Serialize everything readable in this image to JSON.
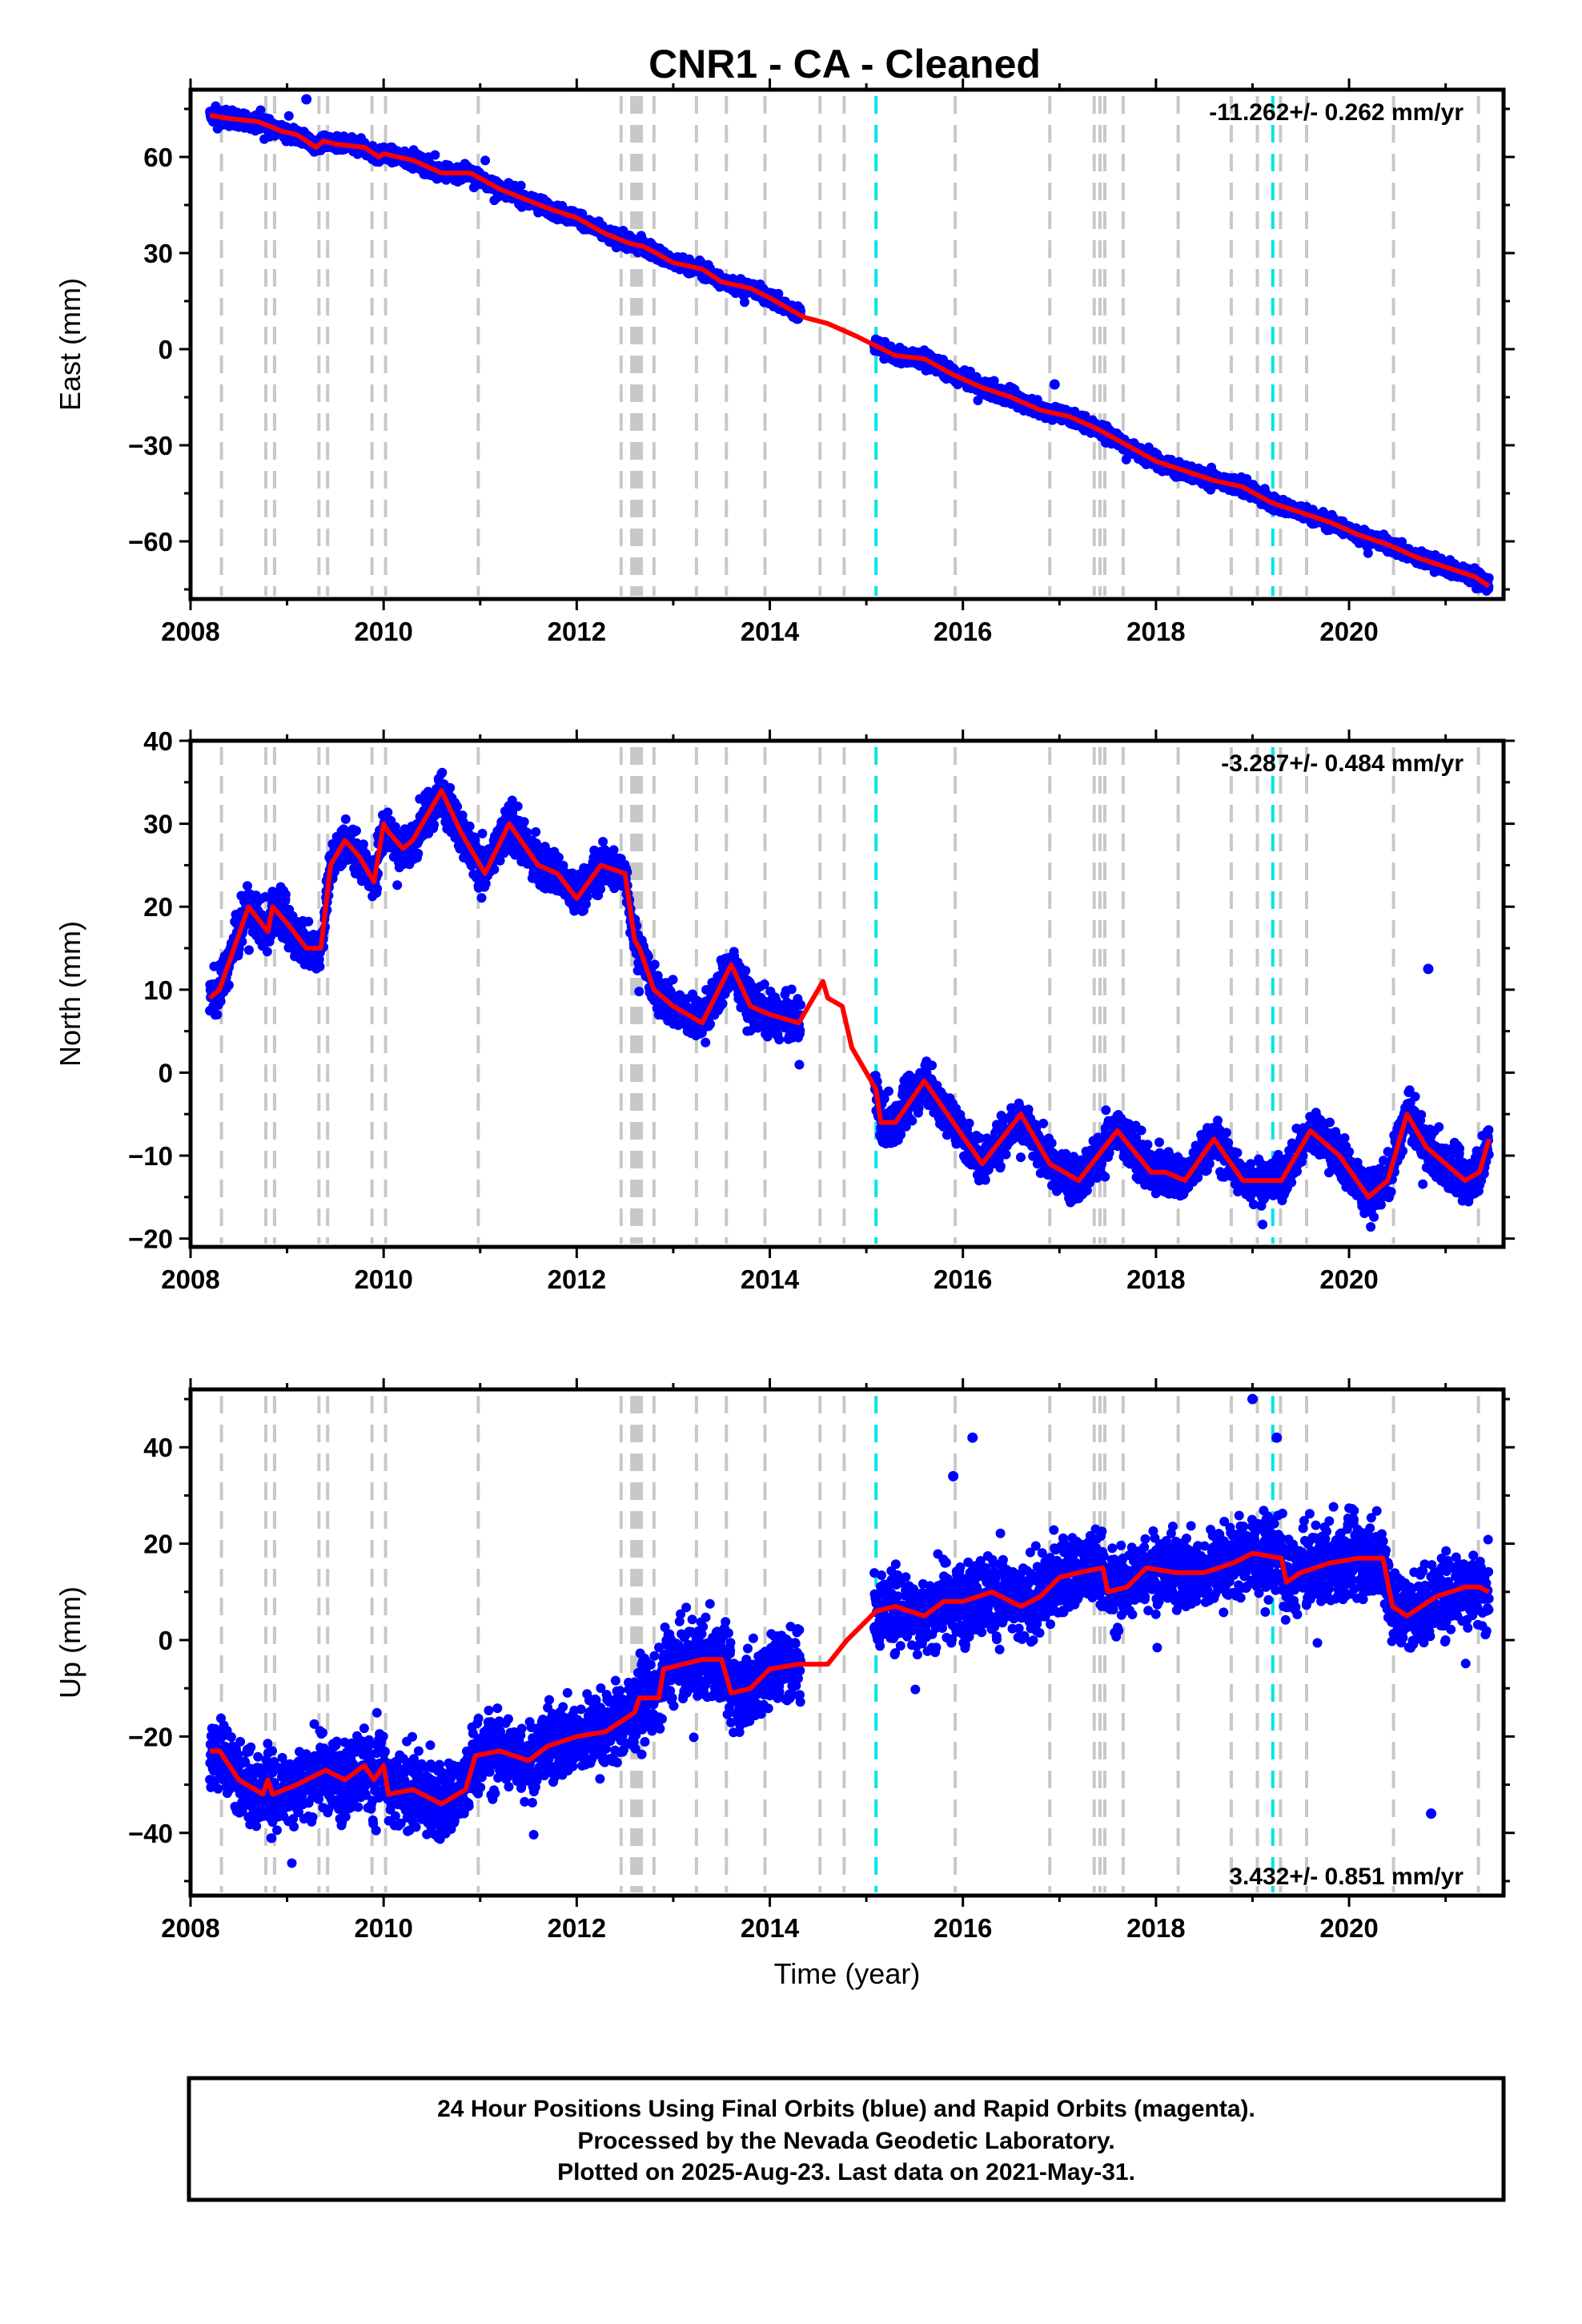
{
  "title": "CNR1  - CA - Cleaned",
  "xlabel": "Time (year)",
  "colors": {
    "data": "#0000ff",
    "model": "#ff0000",
    "event": "#c8c8c8",
    "rinex_event": "#00e5e5"
  },
  "footer": {
    "line1": "24 Hour Positions Using Final Orbits (blue) and Rapid Orbits (magenta).",
    "line2": "Processed by the Nevada Geodetic Laboratory.",
    "line3": "Plotted on 2025-Aug-23. Last data on 2021-May-31."
  },
  "chart_data": [
    {
      "type": "scatter",
      "name": "east",
      "ylabel": "East (mm)",
      "rate_label": "-11.262+/- 0.262 mm/yr",
      "xlim": [
        2008,
        2021.6
      ],
      "ylim": [
        -78,
        81
      ],
      "xticks": [
        2008,
        2010,
        2012,
        2014,
        2016,
        2018,
        2020
      ],
      "yticks": [
        -60,
        -30,
        0,
        30,
        60
      ],
      "model": {
        "x": [
          2008.2,
          2008.4,
          2008.7,
          2008.95,
          2009.1,
          2009.3,
          2009.38,
          2009.5,
          2009.8,
          2009.95,
          2010.0,
          2010.3,
          2010.6,
          2010.9,
          2011.2,
          2011.45,
          2011.7,
          2012.0,
          2012.3,
          2012.55,
          2012.7,
          2013.0,
          2013.3,
          2013.5,
          2013.8,
          2014.0,
          2014.35,
          2014.6,
          2014.9,
          2015.1,
          2015.3,
          2015.6,
          2015.9,
          2016.2,
          2016.5,
          2016.8,
          2017.1,
          2017.4,
          2017.7,
          2018.0,
          2018.3,
          2018.6,
          2018.9,
          2019.2,
          2019.5,
          2019.8,
          2020.1,
          2020.4,
          2020.7,
          2021.0,
          2021.3,
          2021.45
        ],
        "y": [
          73,
          72,
          71,
          68,
          67,
          63,
          65,
          64,
          63,
          60,
          61,
          59,
          55,
          55,
          50,
          47,
          44,
          41,
          36,
          33,
          32,
          27,
          25,
          21,
          19,
          16,
          10,
          8,
          4,
          1,
          -2,
          -3,
          -8,
          -12,
          -15,
          -19,
          -21,
          -25,
          -30,
          -35,
          -38,
          -41,
          -43,
          -48,
          -51,
          -54,
          -58,
          -61,
          -65,
          -68,
          -71,
          -74
        ]
      },
      "data_note_outliers": [
        {
          "x": 2009.2,
          "y": 78
        },
        {
          "x": 2016.95,
          "y": -11
        }
      ]
    },
    {
      "type": "scatter",
      "name": "north",
      "ylabel": "North (mm)",
      "rate_label": "-3.287+/- 0.484 mm/yr",
      "xlim": [
        2008,
        2021.6
      ],
      "ylim": [
        -21,
        40
      ],
      "xticks": [
        2008,
        2010,
        2012,
        2014,
        2016,
        2018,
        2020
      ],
      "yticks": [
        -20,
        -10,
        0,
        10,
        20,
        30,
        40
      ],
      "model": {
        "x": [
          2008.2,
          2008.3,
          2008.6,
          2008.8,
          2008.85,
          2009.0,
          2009.2,
          2009.35,
          2009.45,
          2009.6,
          2009.75,
          2009.9,
          2010.0,
          2010.05,
          2010.2,
          2010.3,
          2010.6,
          2010.8,
          2011.05,
          2011.3,
          2011.6,
          2011.8,
          2012.0,
          2012.25,
          2012.5,
          2012.6,
          2012.65,
          2012.8,
          2013.0,
          2013.3,
          2013.6,
          2013.8,
          2014.0,
          2014.3,
          2014.55,
          2014.6,
          2014.75,
          2014.85,
          2015.0,
          2015.1,
          2015.15,
          2015.3,
          2015.6,
          2015.9,
          2016.2,
          2016.6,
          2016.9,
          2017.2,
          2017.6,
          2017.95,
          2018.1,
          2018.3,
          2018.6,
          2018.9,
          2019.1,
          2019.3,
          2019.6,
          2019.9,
          2020.2,
          2020.4,
          2020.6,
          2020.8,
          2021.2,
          2021.35,
          2021.45
        ],
        "y": [
          9,
          10,
          20,
          17,
          20,
          18,
          15,
          15,
          25,
          28,
          26,
          23,
          30,
          29,
          27,
          28,
          34,
          29,
          24,
          30,
          25,
          24,
          21,
          25,
          24,
          16,
          15,
          10,
          8,
          6,
          13,
          8,
          7,
          6,
          11,
          9,
          8,
          3,
          0,
          -2,
          -6,
          -6,
          -1,
          -6,
          -11,
          -5,
          -11,
          -13,
          -7,
          -12,
          -12,
          -13,
          -8,
          -13,
          -13,
          -13,
          -7,
          -10,
          -15,
          -13,
          -5,
          -9,
          -13,
          -12,
          -8
        ]
      },
      "data_note_outliers": [
        {
          "x": 2020.82,
          "y": 12.5
        }
      ]
    },
    {
      "type": "scatter",
      "name": "up",
      "ylabel": "Up (mm)",
      "rate_label": "3.432+/- 0.851 mm/yr",
      "xlim": [
        2008,
        2021.6
      ],
      "ylim": [
        -53,
        52
      ],
      "xticks": [
        2008,
        2010,
        2012,
        2014,
        2016,
        2018,
        2020
      ],
      "yticks": [
        -40,
        -20,
        0,
        20,
        40
      ],
      "model": {
        "x": [
          2008.2,
          2008.3,
          2008.5,
          2008.75,
          2008.8,
          2008.85,
          2009.1,
          2009.3,
          2009.4,
          2009.6,
          2009.8,
          2009.9,
          2010.0,
          2010.05,
          2010.3,
          2010.6,
          2010.85,
          2010.95,
          2011.2,
          2011.5,
          2011.7,
          2012.0,
          2012.3,
          2012.45,
          2012.6,
          2012.65,
          2012.85,
          2012.9,
          2013.1,
          2013.3,
          2013.5,
          2013.6,
          2013.8,
          2014.0,
          2014.3,
          2014.6,
          2014.8,
          2015.1,
          2015.3,
          2015.6,
          2015.8,
          2016.0,
          2016.3,
          2016.6,
          2016.8,
          2017.0,
          2017.2,
          2017.45,
          2017.5,
          2017.7,
          2017.9,
          2018.2,
          2018.5,
          2018.8,
          2019.0,
          2019.3,
          2019.35,
          2019.5,
          2019.8,
          2020.1,
          2020.35,
          2020.45,
          2020.6,
          2020.9,
          2021.2,
          2021.35,
          2021.45
        ],
        "y": [
          -23,
          -23,
          -29,
          -32,
          -29,
          -32,
          -30,
          -28,
          -27,
          -29,
          -26,
          -29,
          -26,
          -32,
          -31,
          -34,
          -31,
          -24,
          -23,
          -25,
          -22,
          -20,
          -19,
          -17,
          -15,
          -12,
          -12,
          -6,
          -5,
          -4,
          -4,
          -11,
          -10,
          -6,
          -5,
          -5,
          0,
          6,
          7,
          5,
          8,
          8,
          10,
          7,
          9,
          13,
          14,
          15,
          10,
          11,
          15,
          14,
          14,
          16,
          18,
          17,
          12,
          14,
          16,
          17,
          17,
          7,
          5,
          9,
          11,
          11,
          10
        ]
      },
      "data_note_outliers": [
        {
          "x": 2015.9,
          "y": 34
        },
        {
          "x": 2016.1,
          "y": 42
        },
        {
          "x": 2019.0,
          "y": 50
        },
        {
          "x": 2019.25,
          "y": 42
        },
        {
          "x": 2020.85,
          "y": -36
        }
      ]
    }
  ],
  "events": {
    "gray": [
      2008.32,
      2008.78,
      2008.87,
      2009.33,
      2009.42,
      2009.88,
      2010.02,
      2010.98,
      2012.46,
      2012.57,
      2012.6,
      2012.62,
      2012.65,
      2012.67,
      2012.8,
      2013.24,
      2013.55,
      2013.95,
      2014.52,
      2014.77,
      2015.92,
      2016.9,
      2017.36,
      2017.42,
      2017.47,
      2017.66,
      2018.23,
      2018.78,
      2019.05,
      2019.29,
      2019.56,
      2020.46,
      2021.34
    ],
    "cyan": [
      2015.1,
      2019.21
    ]
  }
}
